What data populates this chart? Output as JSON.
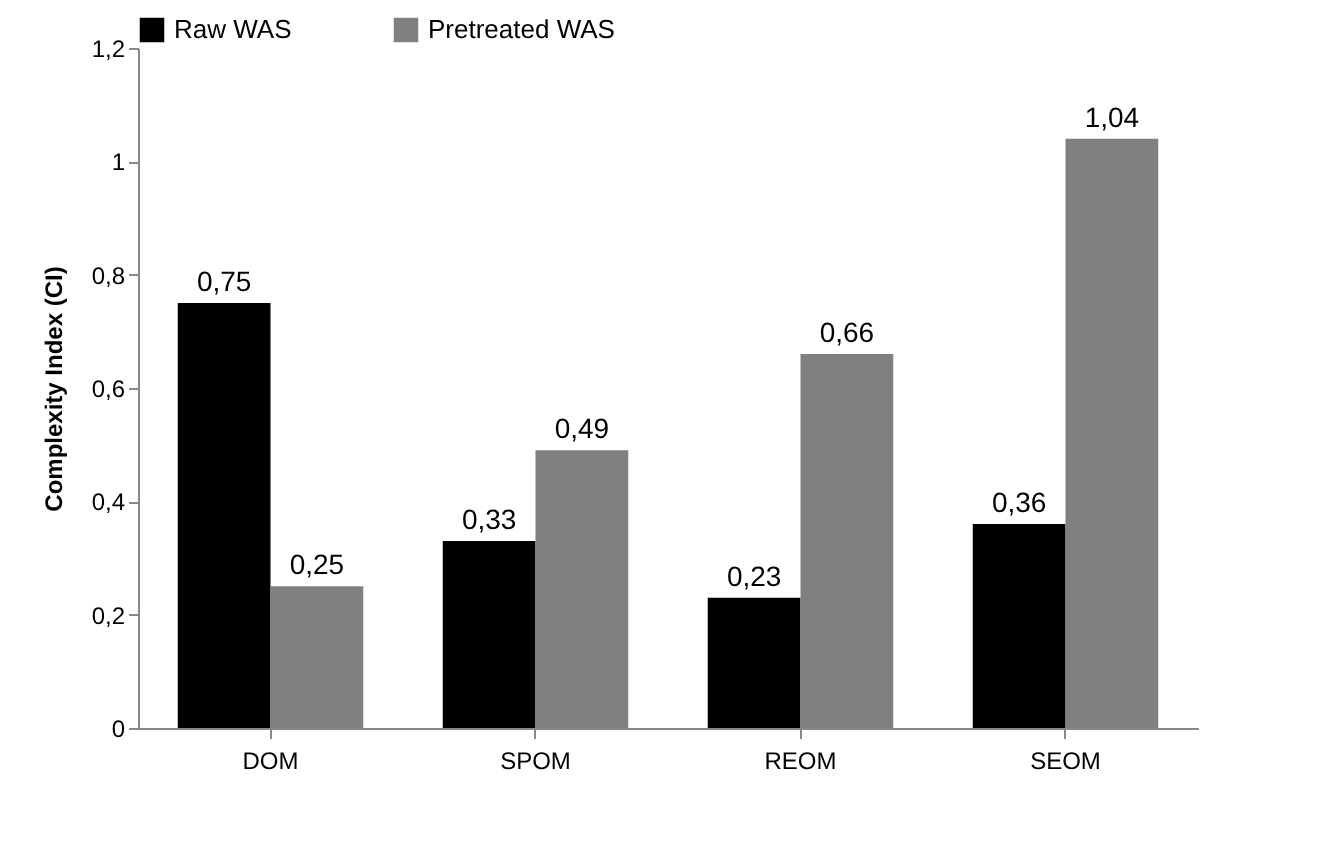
{
  "chart_data": {
    "type": "bar",
    "ylabel": "Complexity Index (CI)",
    "categories": [
      "DOM",
      "SPOM",
      "REOM",
      "SEOM"
    ],
    "series": [
      {
        "name": "Raw WAS",
        "color": "#000000",
        "values": [
          0.75,
          0.33,
          0.23,
          0.36
        ],
        "value_labels": [
          "0,75",
          "0,33",
          "0,23",
          "0,36"
        ]
      },
      {
        "name": "Pretreated WAS",
        "color": "#808080",
        "values": [
          0.25,
          0.49,
          0.66,
          1.04
        ],
        "value_labels": [
          "0,25",
          "0,49",
          "0,66",
          "1,04"
        ]
      }
    ],
    "ylim": [
      0,
      1.2
    ],
    "yticks": [
      0,
      {
        "value": 0.2,
        "label": "0,2"
      },
      {
        "value": 0.4,
        "label": "0,4"
      },
      {
        "value": 0.6,
        "label": "0,6"
      },
      {
        "value": 0.8,
        "label": "0,8"
      },
      1,
      {
        "value": 1.2,
        "label": "1,2"
      }
    ],
    "grid": false,
    "legend": "top"
  }
}
